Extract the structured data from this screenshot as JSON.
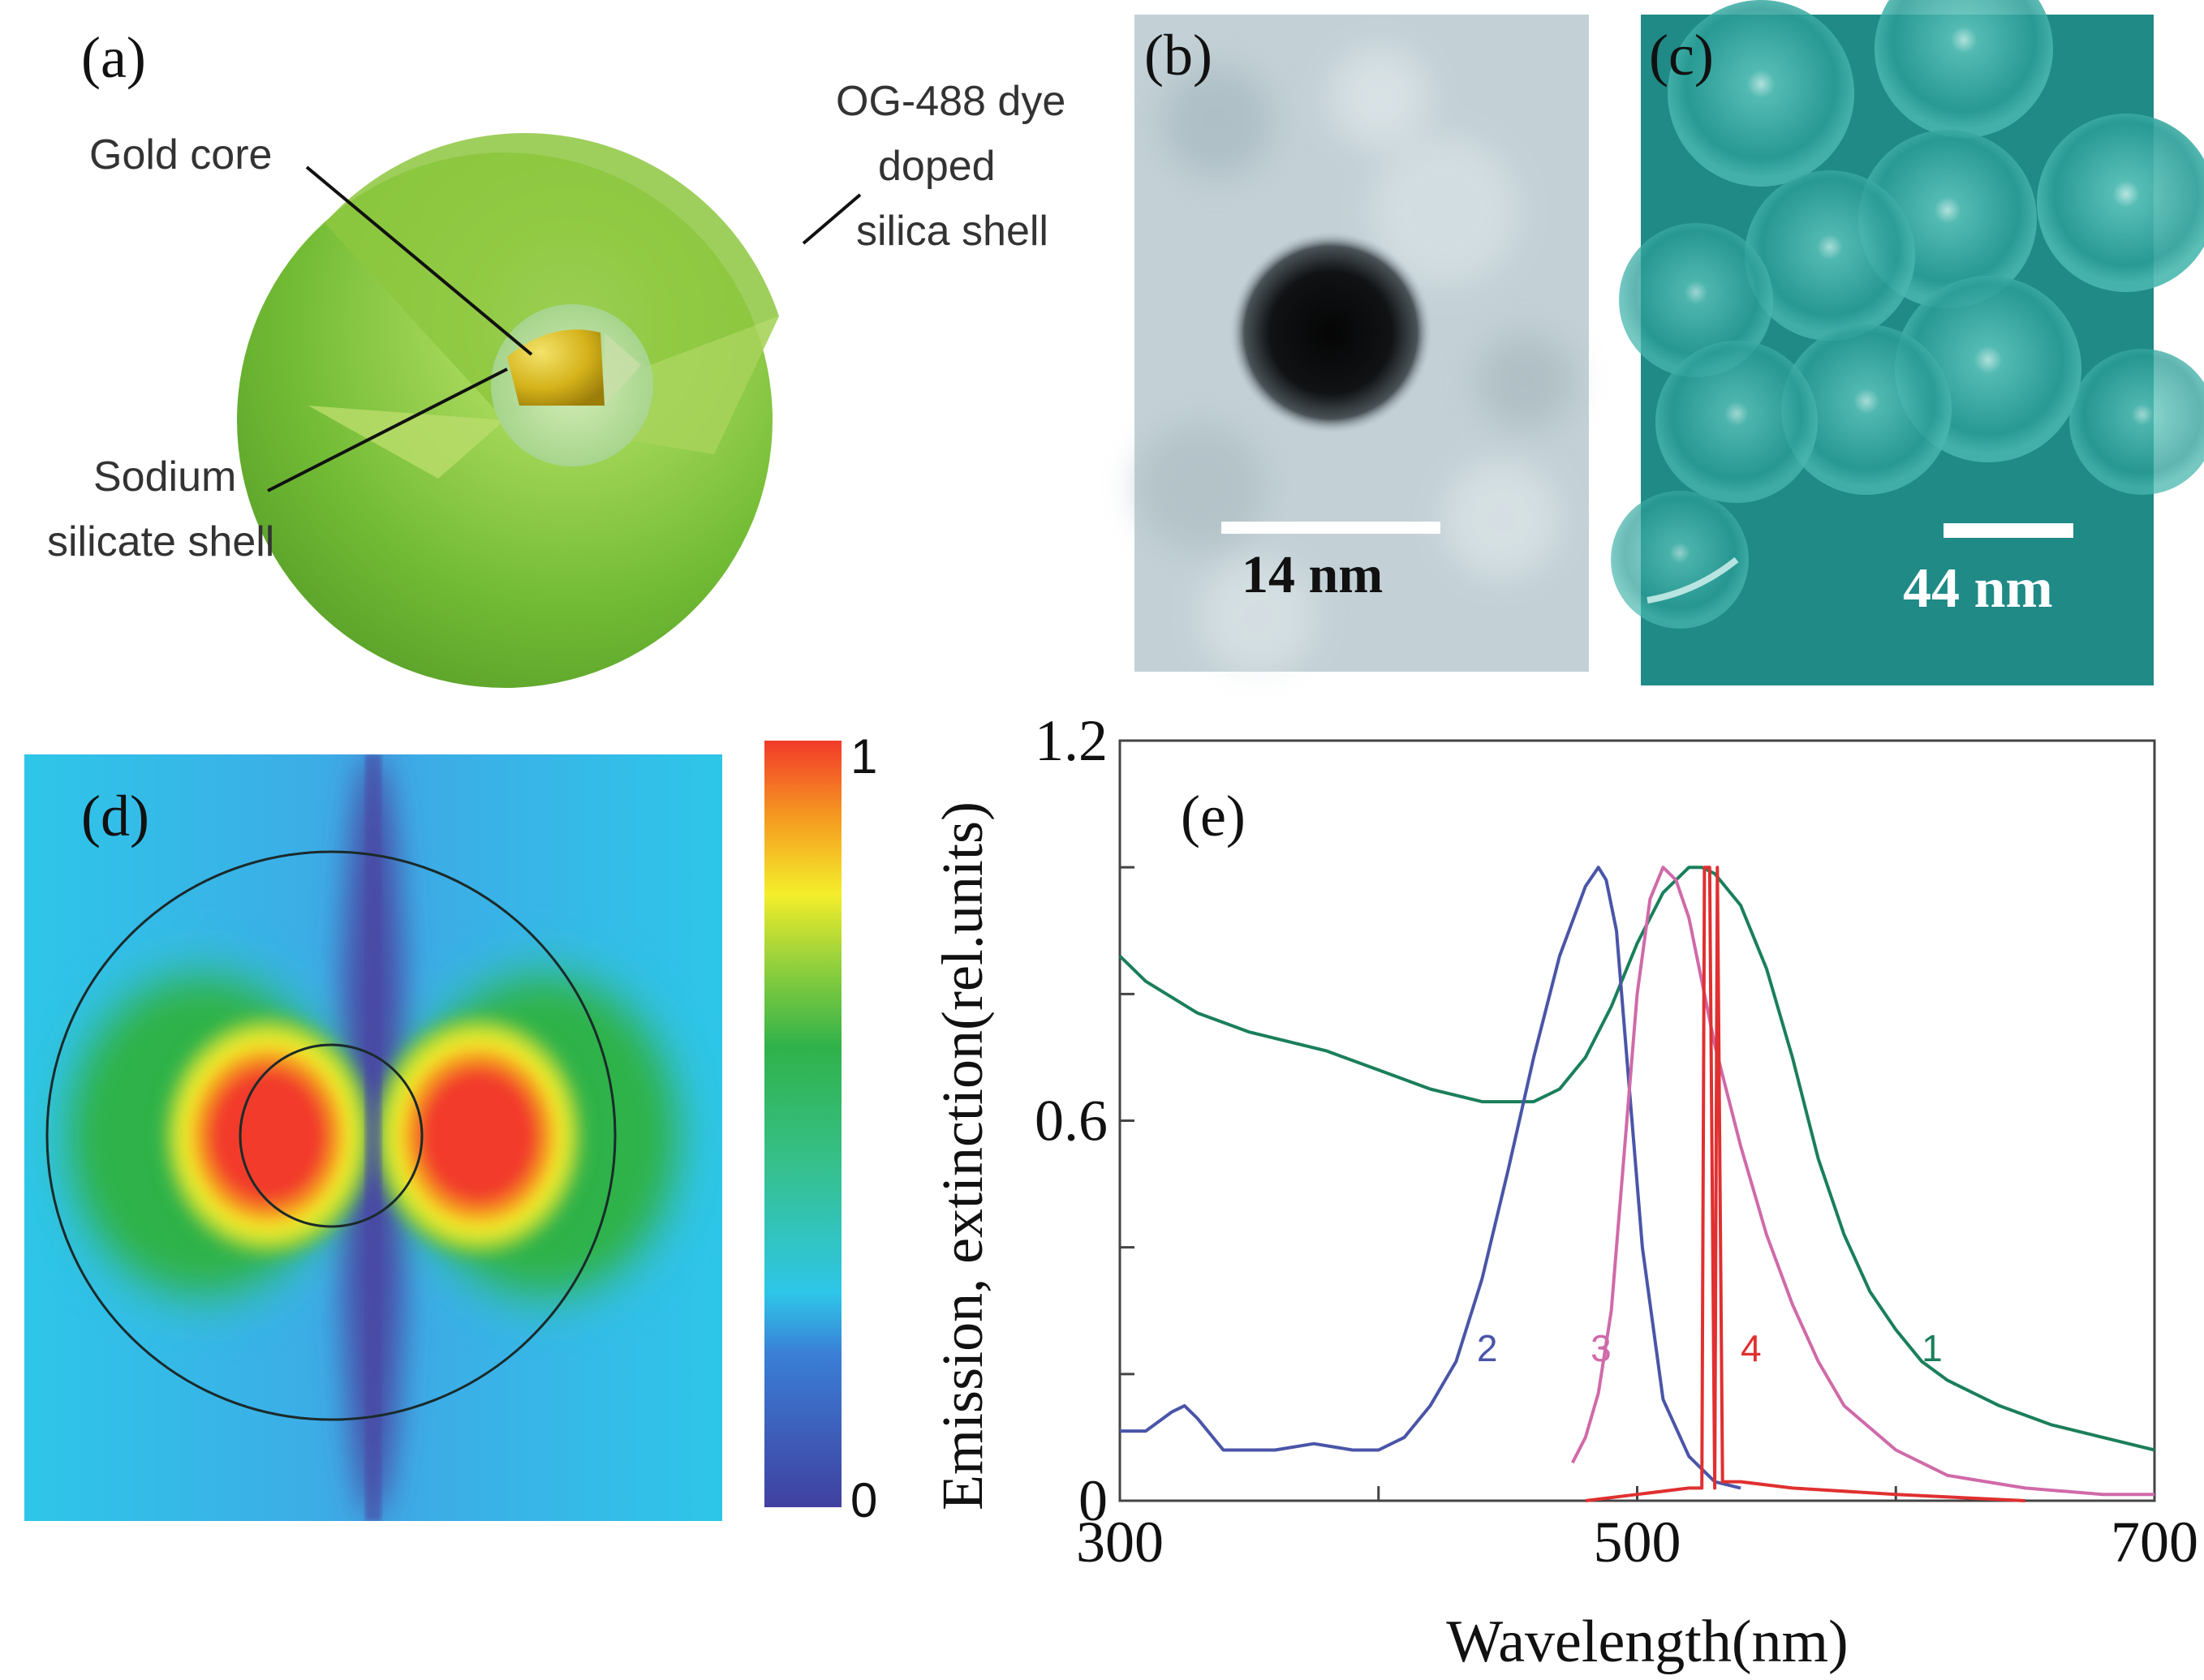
{
  "figure": {
    "panel_a": {
      "tag": "(a)",
      "labels": {
        "gold_core": "Gold core",
        "dye_shell_line1": "OG-488 dye",
        "dye_shell_line2": "doped",
        "dye_shell_line3": "silica shell",
        "sodium_line1": "Sodium",
        "sodium_line2": "silicate shell"
      }
    },
    "panel_b": {
      "tag": "(b)",
      "scale_label": "14 nm"
    },
    "panel_c": {
      "tag": "(c)",
      "scale_label": "44 nm"
    },
    "panel_d": {
      "tag": "(d)",
      "colorbar_max": "1",
      "colorbar_min": "0"
    },
    "panel_e": {
      "tag": "(e)"
    }
  },
  "colors": {
    "curve_1": "#1a7f5a",
    "curve_2": "#4a55a8",
    "curve_3": "#d06aa8",
    "curve_4": "#e03030",
    "gold": "#d4b21a",
    "green_shell": "#7cc23a",
    "micrograph_teal": "#1f8a86"
  },
  "chart_data": {
    "type": "line",
    "title": "",
    "xlabel": "Wavelength(nm)",
    "ylabel": "Emission, extinction(rel.units)",
    "xlim": [
      300,
      700
    ],
    "ylim": [
      0,
      1.2
    ],
    "xticks": [
      "300",
      "500",
      "700"
    ],
    "yticks": [
      "0",
      "0.6",
      "1.2"
    ],
    "grid": false,
    "series": [
      {
        "name": "1",
        "color": "#1a7f5a",
        "label_pos": [
          610,
          0.22
        ],
        "x": [
          300,
          310,
          330,
          350,
          380,
          400,
          420,
          440,
          460,
          470,
          480,
          490,
          500,
          510,
          520,
          525,
          530,
          540,
          550,
          560,
          570,
          580,
          590,
          600,
          610,
          620,
          640,
          660,
          680,
          700
        ],
        "y": [
          0.86,
          0.82,
          0.77,
          0.74,
          0.71,
          0.68,
          0.65,
          0.63,
          0.63,
          0.65,
          0.7,
          0.78,
          0.88,
          0.96,
          1.0,
          1.0,
          0.99,
          0.94,
          0.84,
          0.7,
          0.54,
          0.42,
          0.33,
          0.27,
          0.22,
          0.19,
          0.15,
          0.12,
          0.1,
          0.08
        ]
      },
      {
        "name": "2",
        "color": "#4a55a8",
        "label_pos": [
          438,
          0.22
        ],
        "x": [
          300,
          310,
          320,
          325,
          330,
          340,
          350,
          360,
          375,
          390,
          400,
          410,
          420,
          430,
          440,
          450,
          460,
          470,
          480,
          485,
          488,
          492,
          497,
          502,
          510,
          520,
          530,
          540
        ],
        "y": [
          0.11,
          0.11,
          0.14,
          0.15,
          0.13,
          0.08,
          0.08,
          0.08,
          0.09,
          0.08,
          0.08,
          0.1,
          0.15,
          0.22,
          0.35,
          0.52,
          0.7,
          0.86,
          0.97,
          1.0,
          0.98,
          0.9,
          0.65,
          0.4,
          0.16,
          0.07,
          0.03,
          0.02
        ]
      },
      {
        "name": "3",
        "color": "#d06aa8",
        "label_pos": [
          482,
          0.22
        ],
        "x": [
          475,
          480,
          485,
          490,
          495,
          500,
          505,
          510,
          515,
          520,
          525,
          530,
          540,
          550,
          560,
          570,
          580,
          600,
          620,
          650,
          680,
          700
        ],
        "y": [
          0.06,
          0.1,
          0.17,
          0.3,
          0.55,
          0.8,
          0.95,
          1.0,
          0.98,
          0.92,
          0.82,
          0.72,
          0.56,
          0.42,
          0.31,
          0.22,
          0.15,
          0.08,
          0.04,
          0.02,
          0.01,
          0.01
        ]
      },
      {
        "name": "4",
        "color": "#e03030",
        "label_pos": [
          540,
          0.22
        ],
        "x": [
          480,
          500,
          520,
          525,
          526,
          528,
          530,
          531,
          533,
          540,
          560,
          600,
          650
        ],
        "y": [
          0.0,
          0.01,
          0.02,
          0.02,
          1.0,
          1.0,
          0.02,
          1.0,
          0.03,
          0.03,
          0.02,
          0.01,
          0.0
        ]
      }
    ]
  }
}
